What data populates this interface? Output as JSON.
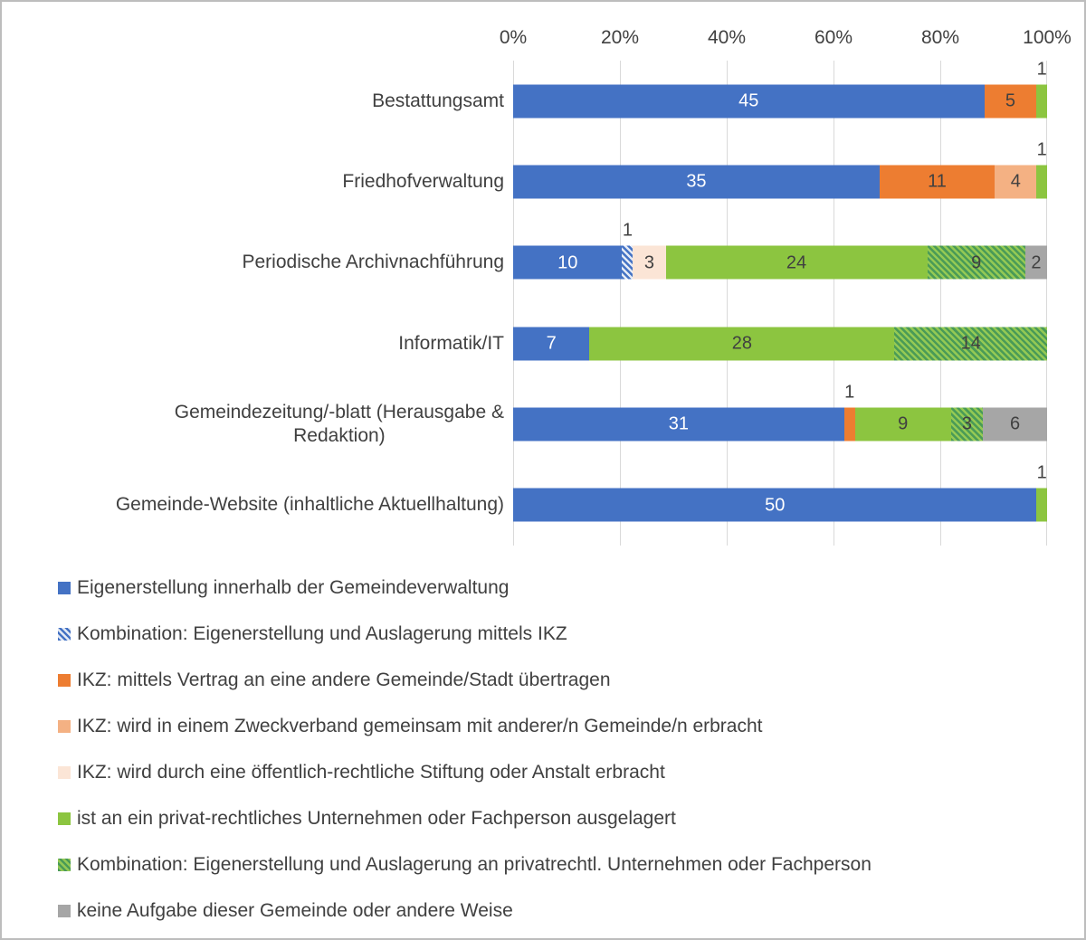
{
  "page": {
    "background": "#FFFFFF",
    "border_color": "#BDBDBD",
    "text_color": "#404040",
    "gridline_color": "#D9D9D9"
  },
  "chart_data": {
    "type": "bar",
    "variant": "horizontal-100-percent-stacked",
    "title": "",
    "x_axis": {
      "position": "top",
      "ticks": [
        "0%",
        "20%",
        "40%",
        "60%",
        "80%",
        "100%"
      ],
      "range": [
        0,
        100
      ],
      "gridlines": true
    },
    "legend_position": "bottom-left",
    "series": [
      {
        "key": "eigen",
        "label": "Eigenerstellung innerhalb der Gemeindeverwaltung",
        "color": "#4472C4",
        "pattern": "solid",
        "text_color": "#FFFFFF"
      },
      {
        "key": "komb_ikz",
        "label": "Kombination: Eigenerstellung und Auslagerung mittels IKZ",
        "color": "#4472C4",
        "pattern": "hatch",
        "hatch_bg": "#E4EAF5",
        "text_color": "#404040"
      },
      {
        "key": "ikz_vertrag",
        "label": "IKZ: mittels Vertrag an eine andere Gemeinde/Stadt übertragen",
        "color": "#ED7D31",
        "pattern": "solid",
        "text_color": "#404040"
      },
      {
        "key": "ikz_zweck",
        "label": "IKZ: wird in einem Zweckverband gemeinsam mit anderer/n Gemeinde/n erbracht",
        "color": "#F4B183",
        "pattern": "solid",
        "text_color": "#404040"
      },
      {
        "key": "ikz_stiftung",
        "label": "IKZ: wird durch eine öffentlich-rechtliche Stiftung oder Anstalt erbracht",
        "color": "#FBE5D6",
        "pattern": "solid",
        "text_color": "#404040"
      },
      {
        "key": "privat",
        "label": "ist an ein privat-rechtliches Unternehmen oder Fachperson ausgelagert",
        "color": "#8CC540",
        "pattern": "solid",
        "text_color": "#404040"
      },
      {
        "key": "komb_privat",
        "label": "Kombination: Eigenerstellung und Auslagerung an privatrechtl. Unternehmen oder Fachperson",
        "color": "#4A9B57",
        "pattern": "hatch",
        "hatch_bg": "#94C954",
        "text_color": "#404040"
      },
      {
        "key": "keine",
        "label": "keine Aufgabe dieser Gemeinde oder andere Weise",
        "color": "#A6A6A6",
        "pattern": "solid",
        "text_color": "#404040"
      }
    ],
    "rows": [
      {
        "category": "Bestattungsamt",
        "segments": [
          {
            "series": "eigen",
            "value": 45
          },
          {
            "series": "ikz_vertrag",
            "value": 5
          },
          {
            "series": "privat",
            "value": 1,
            "label_position": "above"
          }
        ]
      },
      {
        "category": "Friedhofverwaltung",
        "segments": [
          {
            "series": "eigen",
            "value": 35
          },
          {
            "series": "ikz_vertrag",
            "value": 11
          },
          {
            "series": "ikz_zweck",
            "value": 4
          },
          {
            "series": "privat",
            "value": 1,
            "label_position": "above"
          }
        ]
      },
      {
        "category": "Periodische Archivnachführung",
        "segments": [
          {
            "series": "eigen",
            "value": 10
          },
          {
            "series": "komb_ikz",
            "value": 1,
            "label_position": "above"
          },
          {
            "series": "ikz_stiftung",
            "value": 3
          },
          {
            "series": "privat",
            "value": 24
          },
          {
            "series": "komb_privat",
            "value": 9
          },
          {
            "series": "keine",
            "value": 2
          }
        ]
      },
      {
        "category": "Informatik/IT",
        "segments": [
          {
            "series": "eigen",
            "value": 7
          },
          {
            "series": "privat",
            "value": 28
          },
          {
            "series": "komb_privat",
            "value": 14
          }
        ]
      },
      {
        "category": "Gemeindezeitung/-blatt (Herausgabe &\nRedaktion)",
        "segments": [
          {
            "series": "eigen",
            "value": 31
          },
          {
            "series": "ikz_vertrag",
            "value": 1,
            "label_position": "above"
          },
          {
            "series": "privat",
            "value": 9
          },
          {
            "series": "komb_privat",
            "value": 3
          },
          {
            "series": "keine",
            "value": 6
          }
        ]
      },
      {
        "category": "Gemeinde-Website (inhaltliche Aktuellhaltung)",
        "segments": [
          {
            "series": "eigen",
            "value": 50
          },
          {
            "series": "privat",
            "value": 1,
            "label_position": "above"
          }
        ]
      }
    ]
  }
}
